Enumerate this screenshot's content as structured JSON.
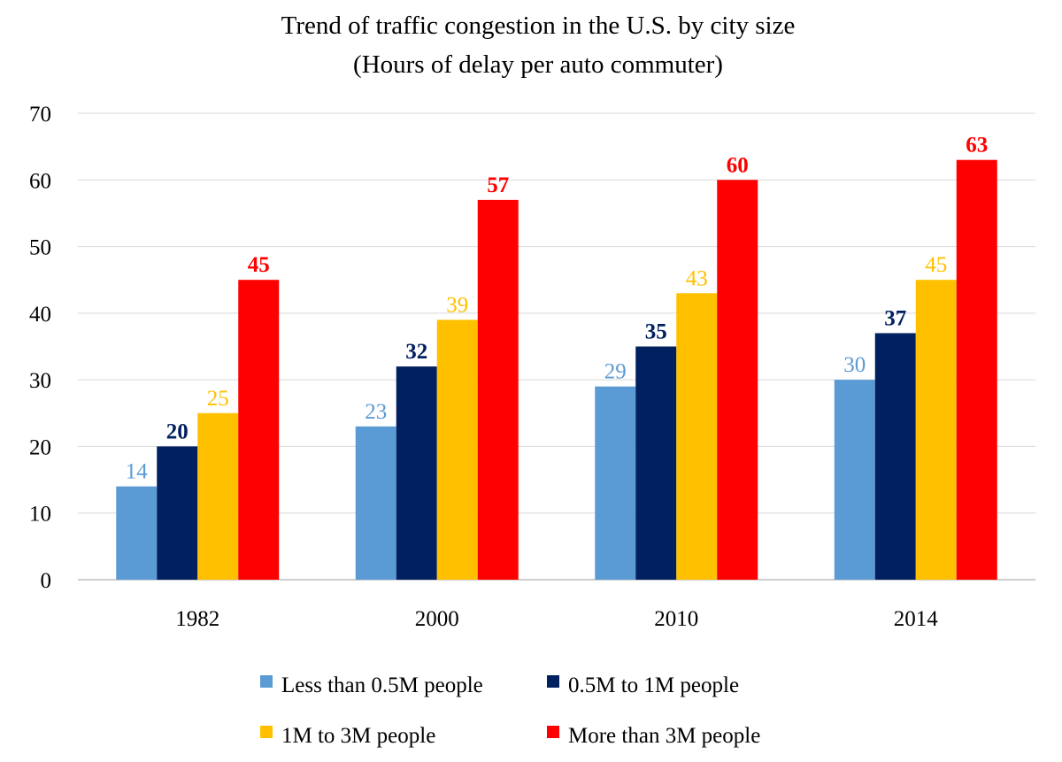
{
  "chart_data": {
    "type": "bar",
    "title": "Trend of traffic congestion in the U.S. by city size",
    "subtitle": "(Hours of delay per auto commuter)",
    "xlabel": "",
    "ylabel": "",
    "categories": [
      "1982",
      "2000",
      "2010",
      "2014"
    ],
    "ylim": [
      0,
      70
    ],
    "yticks": [
      "0",
      "10",
      "20",
      "30",
      "40",
      "50",
      "60",
      "70"
    ],
    "grid": true,
    "legend_position": "bottom",
    "series": [
      {
        "name": "Less than 0.5M people",
        "color": "#5b9bd5",
        "label_bold": false,
        "values": [
          14,
          23,
          29,
          30
        ]
      },
      {
        "name": "0.5M to 1M people",
        "color": "#002060",
        "label_bold": true,
        "values": [
          20,
          32,
          35,
          37
        ]
      },
      {
        "name": "1M to 3M people",
        "color": "#ffc000",
        "label_bold": false,
        "values": [
          25,
          39,
          43,
          45
        ]
      },
      {
        "name": "More than 3M people",
        "color": "#ff0000",
        "label_bold": true,
        "values": [
          45,
          57,
          60,
          63
        ]
      }
    ]
  }
}
